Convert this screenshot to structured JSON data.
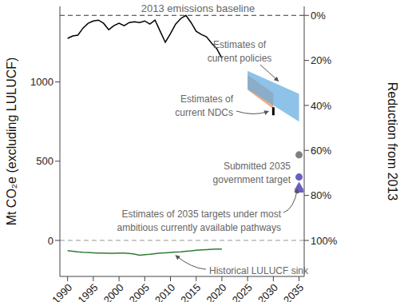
{
  "chart_data": {
    "type": "line",
    "xlim": [
      1988.5,
      2036
    ],
    "xticks": [
      1990,
      1995,
      2000,
      2005,
      2010,
      2015,
      2020,
      2025,
      2030,
      2035
    ],
    "ylim": [
      -227.2,
      1476.8
    ],
    "yticks": [
      0,
      500,
      1000
    ],
    "y2lim": [
      -4,
      116
    ],
    "y2ticks": [
      {
        "value": 0,
        "label": "0%"
      },
      {
        "value": 20,
        "label": "20%"
      },
      {
        "value": 40,
        "label": "40%"
      },
      {
        "value": 60,
        "label": "60%"
      },
      {
        "value": 80,
        "label": "80%"
      },
      {
        "value": 100,
        "label": "100%"
      }
    ],
    "y_label": "Mt CO₂e (excluding LULUCF)",
    "y2_label": "Reduction from 2013",
    "grid": false,
    "reference_lines": [
      {
        "y": 1420,
        "label": "2013 emissions baseline",
        "color": "#333333",
        "line_style": "dashed"
      },
      {
        "y": 0,
        "color": "#aaaaaa",
        "line_style": "dashed"
      }
    ],
    "series": [
      {
        "type": "line",
        "color": "#000000",
        "x": [
          1990,
          1991,
          1992,
          1993,
          1994,
          1995,
          1996,
          1997,
          1998,
          1999,
          2000,
          2001,
          2002,
          2003,
          2004,
          2005,
          2006,
          2007,
          2008,
          2009,
          2010,
          2011,
          2012,
          2013,
          2014,
          2015,
          2016,
          2017,
          2018,
          2019,
          2020
        ],
        "values": [
          1275,
          1290,
          1295,
          1340,
          1370,
          1385,
          1390,
          1370,
          1330,
          1355,
          1370,
          1355,
          1375,
          1380,
          1375,
          1385,
          1365,
          1390,
          1320,
          1250,
          1305,
          1365,
          1400,
          1420,
          1375,
          1320,
          1300,
          1285,
          1245,
          1210,
          1150
        ]
      },
      {
        "type": "line",
        "name": "Historical LULUCF sink",
        "color": "#2e7d32",
        "x": [
          1990,
          1991,
          1992,
          1993,
          1994,
          1995,
          1996,
          1997,
          1998,
          1999,
          2000,
          2001,
          2002,
          2003,
          2004,
          2005,
          2006,
          2007,
          2008,
          2009,
          2010,
          2011,
          2012,
          2013,
          2014,
          2015,
          2016,
          2017,
          2018,
          2019,
          2020
        ],
        "values": [
          -65,
          -68,
          -72,
          -75,
          -76,
          -78,
          -80,
          -80,
          -81,
          -81,
          -80,
          -80,
          -82,
          -86,
          -93,
          -90,
          -87,
          -83,
          -80,
          -78,
          -76,
          -74,
          -72,
          -68,
          -66,
          -62,
          -60,
          -58,
          -56,
          -55,
          -55
        ]
      },
      {
        "type": "range",
        "color": "#e8915a",
        "x": [
          2025,
          2030
        ],
        "values": [
          [
            950,
            1045
          ],
          [
            830,
            930
          ]
        ]
      },
      {
        "type": "range",
        "name": "Estimates of current policies",
        "color": "#6aaee0",
        "x": [
          2025,
          2035
        ],
        "values": [
          [
            955,
            1070
          ],
          [
            750,
            925
          ]
        ]
      },
      {
        "type": "scatter",
        "name": "Estimates of current NDCs",
        "color": "#000000",
        "marker": "line",
        "x": [
          2030
        ],
        "values": [
          815
        ]
      },
      {
        "type": "scatter",
        "name": "Submitted 2035 government target",
        "color": "#7f7f7f",
        "marker": "circle",
        "x": [
          2035
        ],
        "values": [
          540
        ]
      },
      {
        "type": "scatter",
        "name": "Estimates of 2035 targets under most ambitious currently available pathways",
        "color": "#6a5fc0",
        "marker": "circle",
        "x": [
          2035
        ],
        "values": [
          400
        ]
      },
      {
        "type": "scatter",
        "color": "#6a5fc0",
        "marker": "triangle",
        "x": [
          2035,
          2035,
          2035
        ],
        "values": [
          335,
          320,
          325
        ]
      }
    ]
  }
}
